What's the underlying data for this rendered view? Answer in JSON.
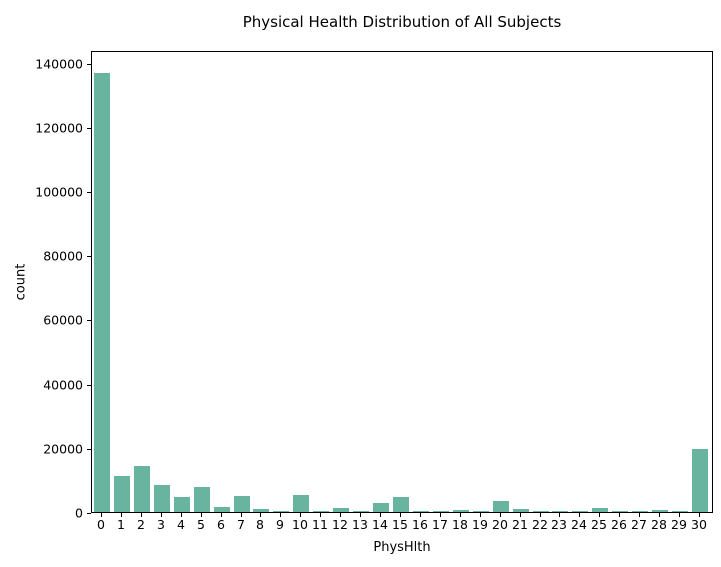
{
  "figure": {
    "background": "#ffffff",
    "text_color": "#000000",
    "spine_color": "#000000"
  },
  "chart_data": {
    "type": "bar",
    "title": "Physical Health Distribution of All Subjects",
    "xlabel": "PhysHlth",
    "ylabel": "count",
    "categories": [
      "0",
      "1",
      "2",
      "3",
      "4",
      "5",
      "6",
      "7",
      "8",
      "9",
      "10",
      "11",
      "12",
      "13",
      "14",
      "15",
      "16",
      "17",
      "18",
      "19",
      "20",
      "21",
      "22",
      "23",
      "24",
      "25",
      "26",
      "27",
      "28",
      "29",
      "30"
    ],
    "values": [
      136800,
      11100,
      14300,
      8300,
      4700,
      7800,
      1550,
      4850,
      950,
      250,
      5450,
      150,
      1100,
      150,
      2650,
      4750,
      400,
      400,
      500,
      150,
      3400,
      900,
      300,
      150,
      400,
      1350,
      300,
      300,
      550,
      300,
      19650
    ],
    "yticks": [
      0,
      20000,
      40000,
      60000,
      80000,
      100000,
      120000,
      140000
    ],
    "ylim": [
      0,
      143900
    ],
    "bar_color": "#69B49E",
    "grid": false,
    "legend_position": "none"
  }
}
